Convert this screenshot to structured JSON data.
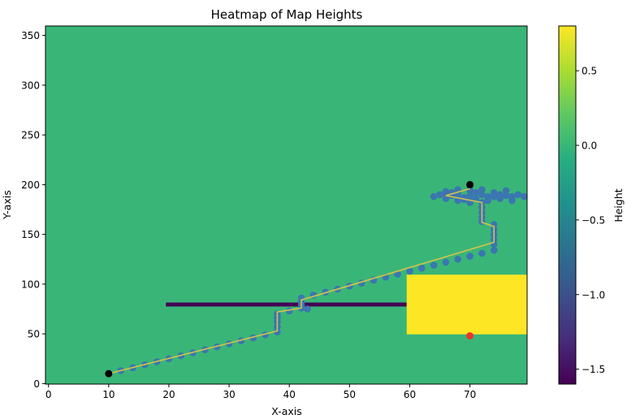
{
  "chart_data": {
    "type": "heatmap",
    "title": "Heatmap of Map Heights",
    "xlabel": "X-axis",
    "ylabel": "Y-axis",
    "xlim": [
      -0.5,
      79.5
    ],
    "ylim": [
      -0.5,
      359.5
    ],
    "x_ticks": [
      0,
      10,
      20,
      30,
      40,
      50,
      60,
      70
    ],
    "y_ticks": [
      0,
      50,
      100,
      150,
      200,
      250,
      300,
      350
    ],
    "colorbar": {
      "label": "Height",
      "range": [
        -1.6,
        0.8
      ],
      "ticks": [
        0.5,
        0.0,
        -0.5,
        -1.0,
        -1.5
      ],
      "tick_labels": [
        "0.5",
        "0.0",
        "−0.5",
        "−1.0",
        "−1.5"
      ],
      "colormap": "viridis"
    },
    "background_height": 0.0,
    "regions": [
      {
        "name": "wall",
        "x": [
          19.5,
          59.5
        ],
        "y": [
          77.5,
          81.5
        ],
        "height": -1.6
      },
      {
        "name": "high-block",
        "x": [
          59.5,
          79.5
        ],
        "y": [
          49.5,
          109.5
        ],
        "height": 0.8
      }
    ],
    "path_points": [
      [
        10,
        10
      ],
      [
        12,
        13
      ],
      [
        14,
        16
      ],
      [
        16,
        19
      ],
      [
        18,
        22
      ],
      [
        20,
        25
      ],
      [
        22,
        28
      ],
      [
        24,
        31
      ],
      [
        26,
        34
      ],
      [
        28,
        37
      ],
      [
        30,
        40
      ],
      [
        32,
        43
      ],
      [
        34,
        46
      ],
      [
        36,
        49
      ],
      [
        38,
        52
      ],
      [
        38,
        57
      ],
      [
        38,
        62
      ],
      [
        38,
        66
      ],
      [
        38,
        70
      ],
      [
        40,
        73
      ],
      [
        42,
        76
      ],
      [
        42,
        79
      ],
      [
        42,
        82
      ],
      [
        42,
        86
      ],
      [
        44,
        89
      ],
      [
        46,
        92
      ],
      [
        48,
        95
      ],
      [
        50,
        98
      ],
      [
        52,
        101
      ],
      [
        54,
        104
      ],
      [
        56,
        107
      ],
      [
        58,
        110
      ],
      [
        60,
        113
      ],
      [
        62,
        116
      ],
      [
        64,
        119
      ],
      [
        66,
        122
      ],
      [
        68,
        125
      ],
      [
        70,
        128
      ],
      [
        72,
        131
      ],
      [
        74,
        134
      ],
      [
        74,
        140
      ],
      [
        74,
        145
      ],
      [
        74,
        150
      ],
      [
        74,
        155
      ],
      [
        74,
        160
      ],
      [
        72,
        163
      ],
      [
        72,
        167
      ],
      [
        72,
        172
      ],
      [
        72,
        177
      ],
      [
        72,
        182
      ],
      [
        70,
        185
      ],
      [
        68,
        187
      ],
      [
        66,
        190
      ],
      [
        68,
        193
      ],
      [
        70,
        196
      ]
    ],
    "path_line": [
      [
        10,
        10
      ],
      [
        38,
        53
      ],
      [
        38,
        72
      ],
      [
        42,
        76
      ],
      [
        42,
        84
      ],
      [
        74,
        142
      ],
      [
        74,
        158
      ],
      [
        72,
        162
      ],
      [
        72,
        182
      ],
      [
        66,
        189
      ],
      [
        70,
        196
      ]
    ],
    "cluster_points": [
      [
        64,
        188
      ],
      [
        65,
        190
      ],
      [
        66,
        186
      ],
      [
        66,
        193
      ],
      [
        67,
        189
      ],
      [
        68,
        184
      ],
      [
        68,
        191
      ],
      [
        68,
        195
      ],
      [
        69,
        187
      ],
      [
        70,
        182
      ],
      [
        70,
        189
      ],
      [
        70,
        194
      ],
      [
        71,
        186
      ],
      [
        72,
        190
      ],
      [
        72,
        195
      ],
      [
        73,
        184
      ],
      [
        73,
        188
      ],
      [
        74,
        192
      ],
      [
        75,
        186
      ],
      [
        75,
        190
      ],
      [
        76,
        194
      ],
      [
        77,
        188
      ],
      [
        77,
        184
      ],
      [
        78,
        190
      ],
      [
        79,
        188
      ],
      [
        74,
        188
      ],
      [
        71,
        192
      ],
      [
        67,
        192
      ],
      [
        69,
        185
      ],
      [
        76,
        189
      ]
    ],
    "extra_point": [
      43,
      75
    ],
    "start_point": [
      10,
      10
    ],
    "goal_point": [
      70,
      200
    ],
    "target_point": [
      70,
      48
    ],
    "colors": {
      "path_marker": "#3b76b0",
      "path_line": "#d6c24a",
      "start": "#000000",
      "goal": "#000000",
      "target": "#e8372c"
    }
  }
}
